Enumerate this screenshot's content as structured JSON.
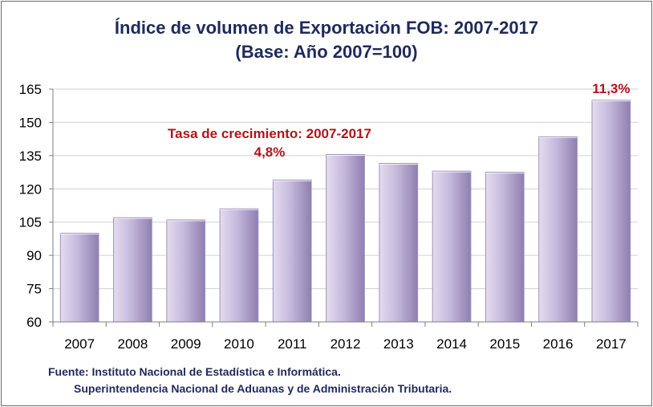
{
  "title_line1": "Índice de volumen de Exportación FOB: 2007-2017",
  "title_line2": "(Base: Año 2007=100)",
  "source_line1": "Fuente: Instituto Nacional de Estadística e Informática.",
  "source_line2": "Superintendencia Nacional de Aduanas y de Administración Tributaria.",
  "colors": {
    "title": "#1f2a5c",
    "annotation": "#b0151d",
    "bar_light": "#e4dcef",
    "bar_dark": "#8f7fb0",
    "grid": "#d0d0d0"
  },
  "chart_data": {
    "type": "bar",
    "title": "Índice de volumen de Exportación FOB: 2007-2017",
    "subtitle": "(Base: Año 2007=100)",
    "xlabel": "",
    "ylabel": "",
    "categories": [
      "2007",
      "2008",
      "2009",
      "2010",
      "2011",
      "2012",
      "2013",
      "2014",
      "2015",
      "2016",
      "2017"
    ],
    "values": [
      100,
      107,
      106,
      111,
      124,
      135.5,
      131.5,
      128,
      127.5,
      143.5,
      160
    ],
    "ylim": [
      60,
      165
    ],
    "yticks": [
      60,
      75,
      90,
      105,
      120,
      135,
      150,
      165
    ],
    "grid": true,
    "annotations": [
      {
        "text": "Tasa de crecimiento: 2007-2017"
      },
      {
        "text": "4,8%"
      },
      {
        "text": "11,3%"
      }
    ]
  }
}
